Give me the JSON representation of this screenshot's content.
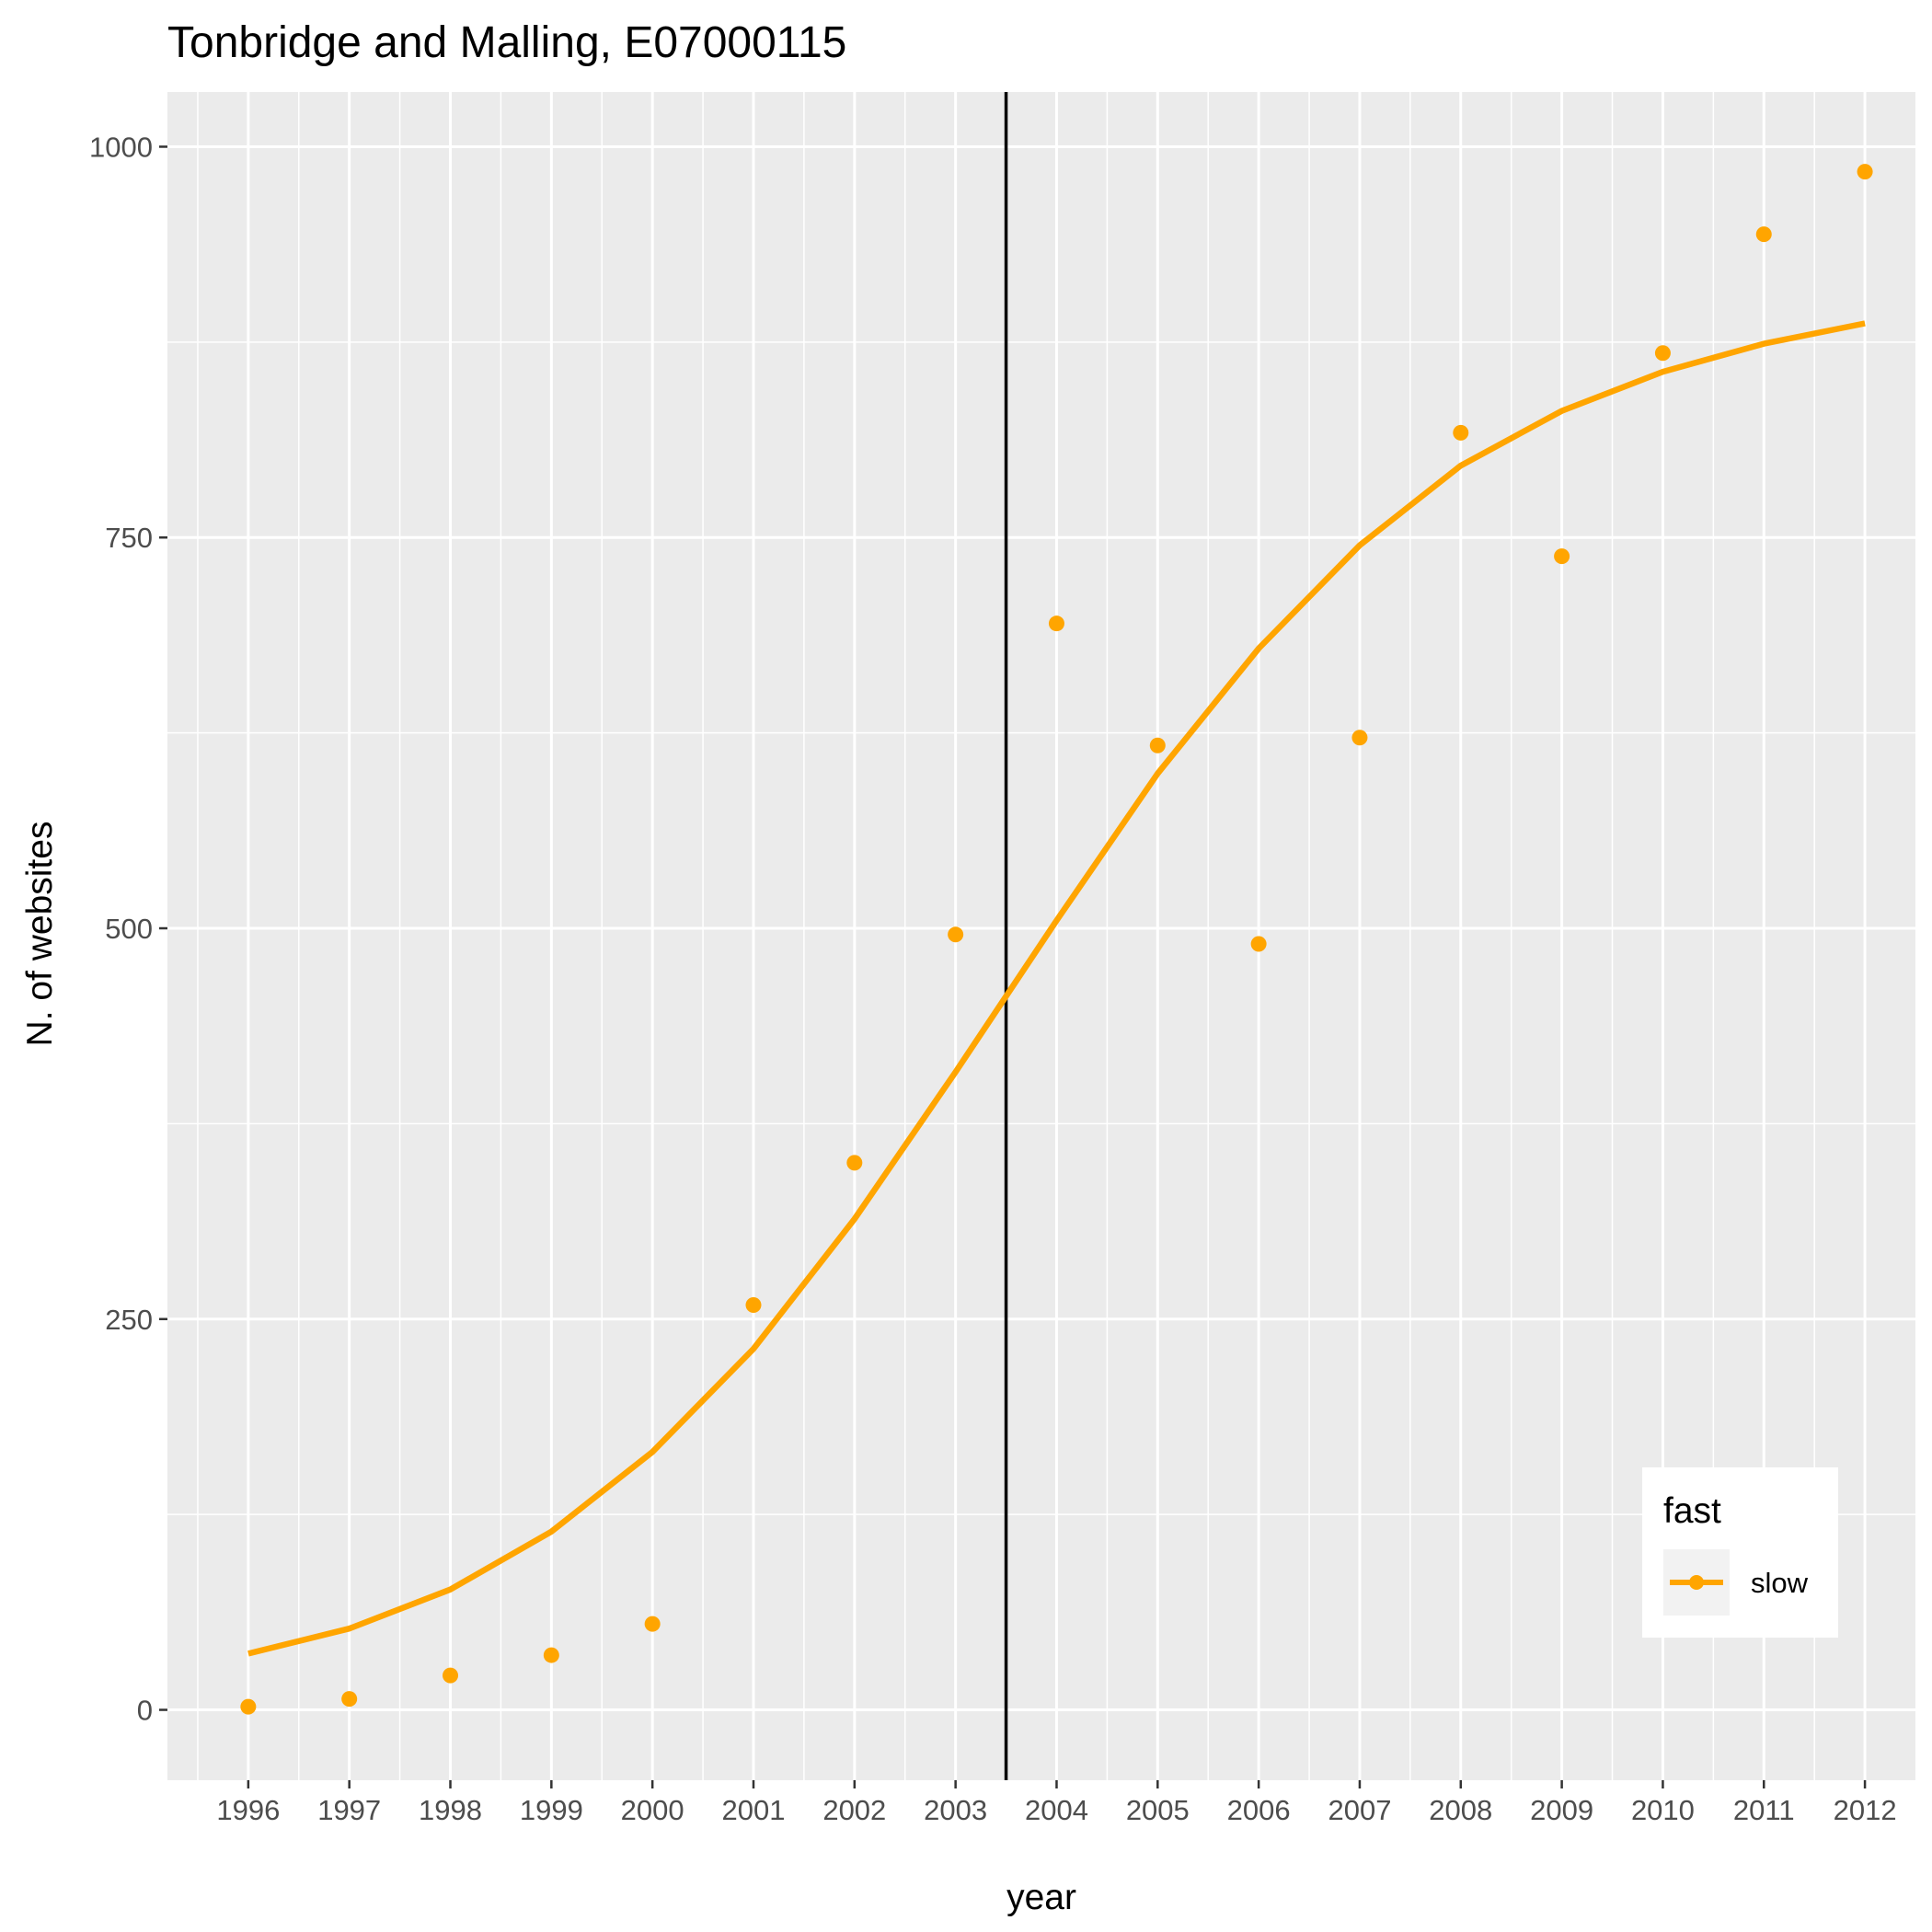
{
  "chart_data": {
    "type": "line",
    "title": "Tonbridge and Malling, E07000115",
    "xlabel": "year",
    "ylabel": "N. of websites",
    "x": [
      1996,
      1997,
      1998,
      1999,
      2000,
      2001,
      2002,
      2003,
      2004,
      2005,
      2006,
      2007,
      2008,
      2009,
      2010,
      2011,
      2012
    ],
    "x_tick_labels": [
      "1996",
      "1997",
      "1998",
      "1999",
      "2000",
      "2001",
      "2002",
      "2003",
      "2004",
      "2005",
      "2006",
      "2007",
      "2008",
      "2009",
      "2010",
      "2011",
      "2012"
    ],
    "y_ticks": [
      0,
      250,
      500,
      750,
      1000
    ],
    "y_tick_labels": [
      "0",
      "250",
      "500",
      "750",
      "1000"
    ],
    "xlim": [
      1995.2,
      2012.5
    ],
    "ylim": [
      -45,
      1035
    ],
    "vline_x": 2003.5,
    "grid": true,
    "series": [
      {
        "name": "slow",
        "color": "#FFA500",
        "points": [
          2,
          7,
          22,
          35,
          55,
          259,
          350,
          496,
          695,
          617,
          490,
          622,
          817,
          738,
          868,
          944,
          984
        ],
        "smooth": [
          36,
          52,
          77,
          114,
          165,
          231,
          314,
          408,
          505,
          599,
          679,
          745,
          796,
          831,
          856,
          874,
          887
        ]
      }
    ],
    "legend": {
      "title": "fast",
      "position": "bottom-right"
    }
  }
}
